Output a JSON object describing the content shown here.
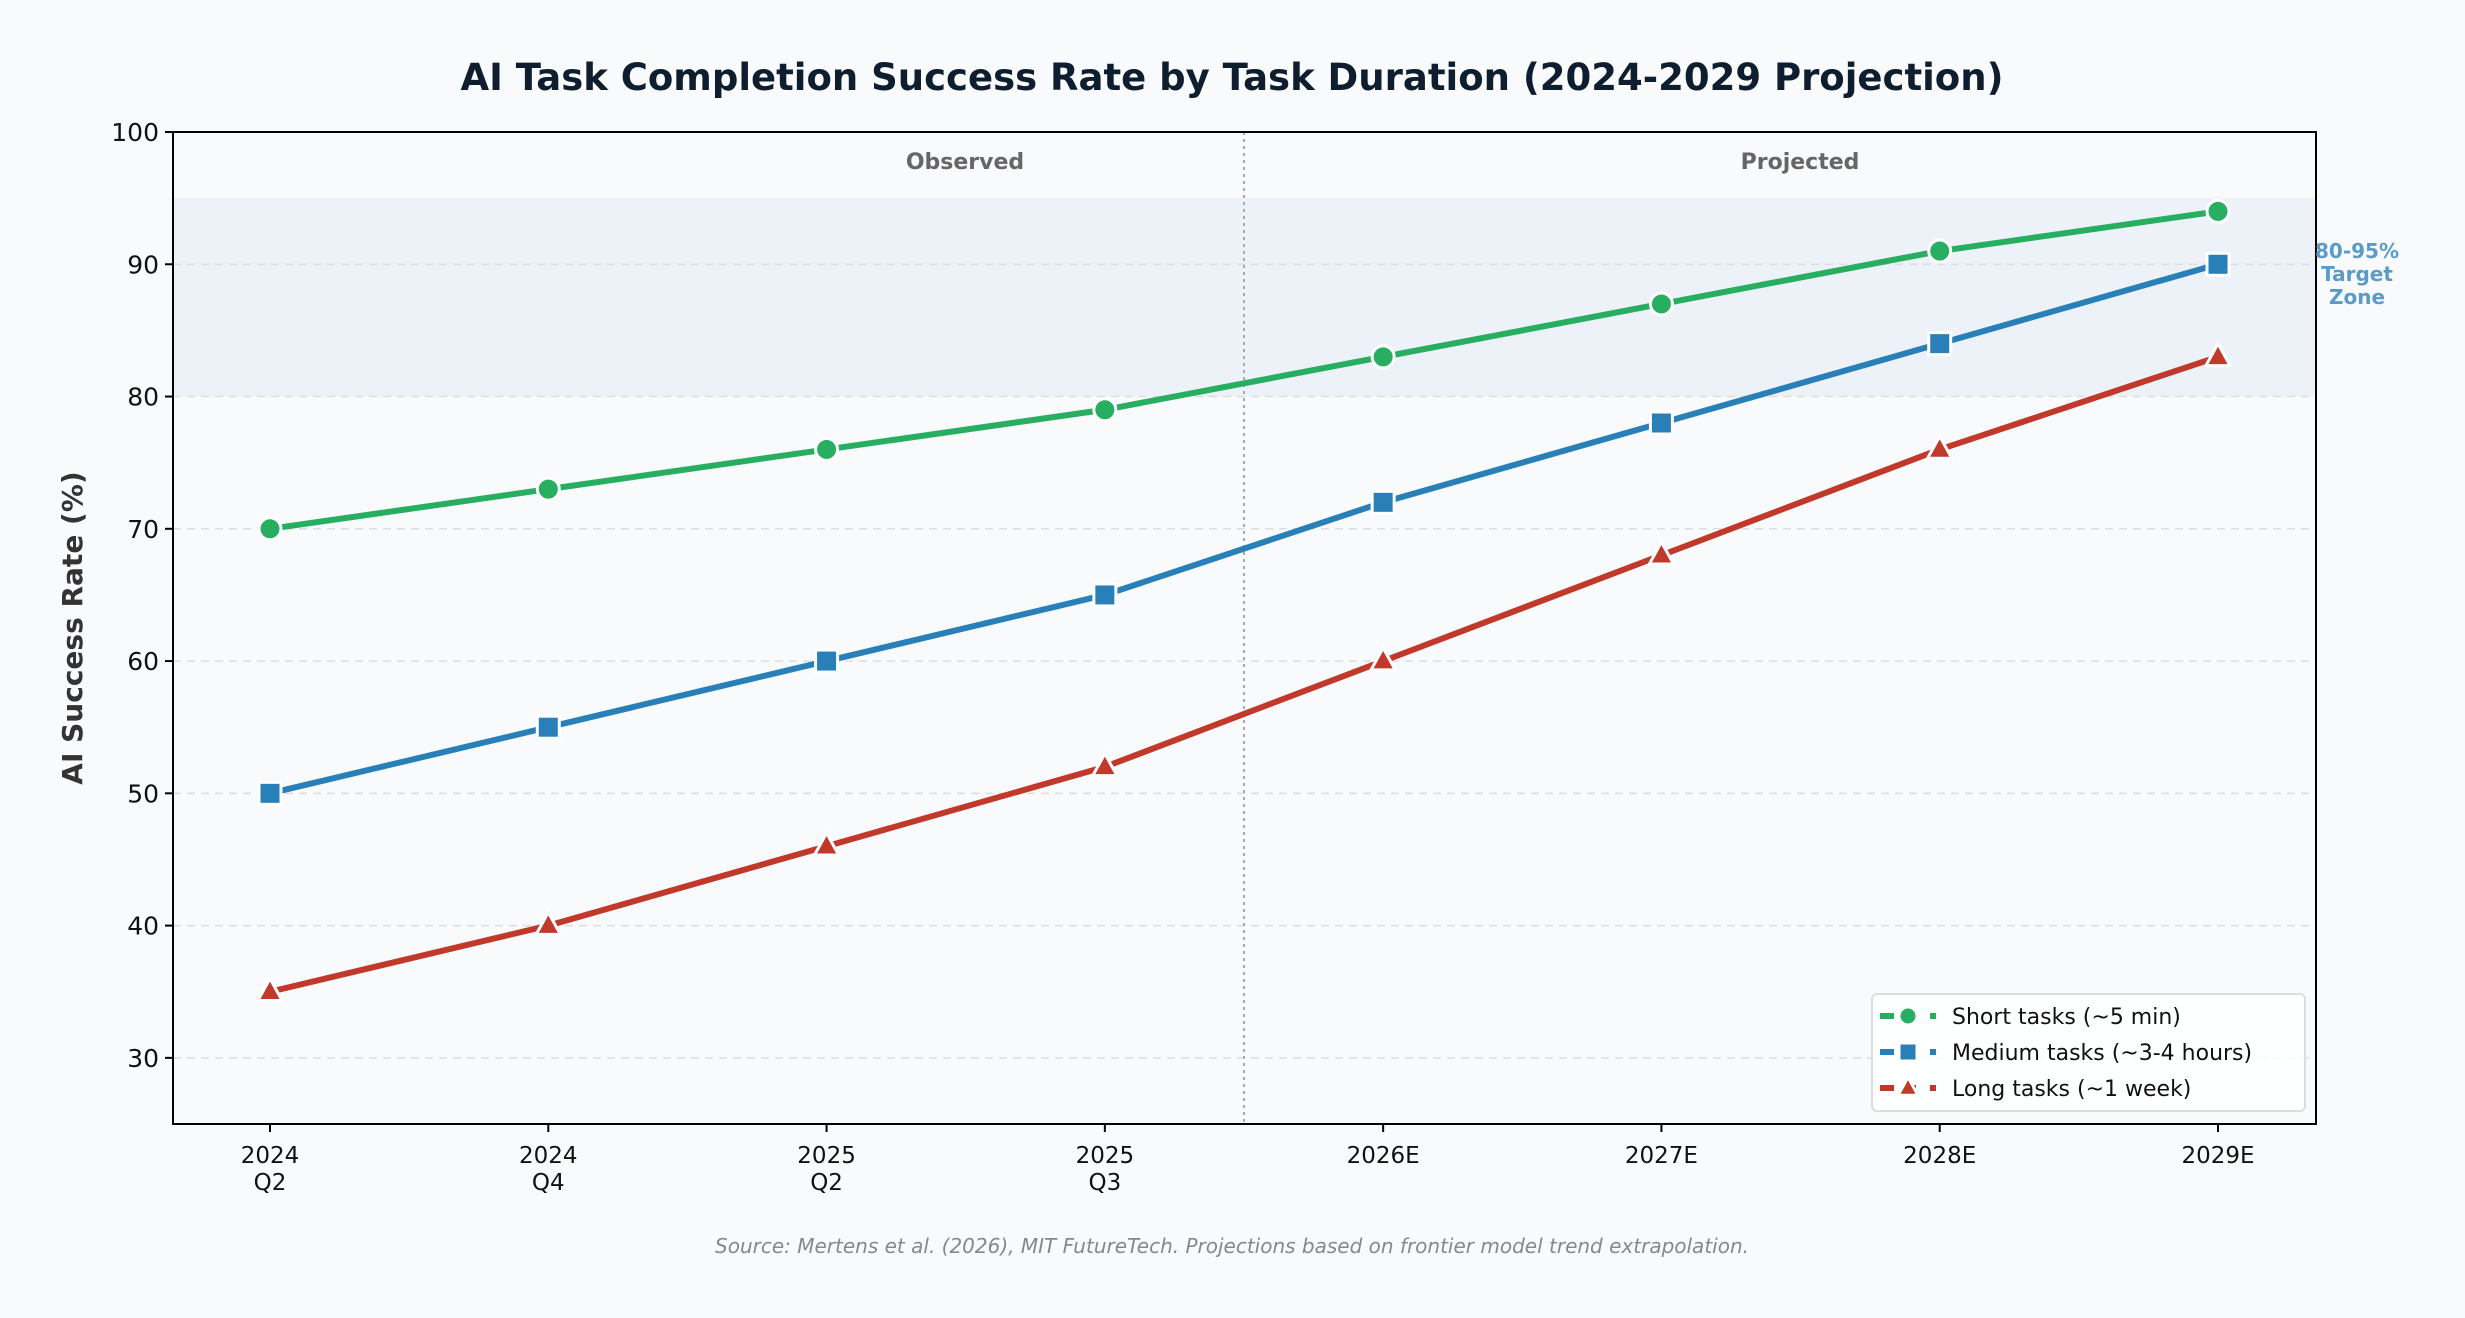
{
  "chart_data": {
    "type": "line",
    "title": "AI Task Completion Success Rate by Task Duration (2024-2029 Projection)",
    "xlabel": "",
    "ylabel": "AI Success Rate (%)",
    "categories": [
      [
        "2024",
        "Q2"
      ],
      [
        "2024",
        "Q4"
      ],
      [
        "2025",
        "Q2"
      ],
      [
        "2025",
        "Q3"
      ],
      [
        "2026E"
      ],
      [
        "2027E"
      ],
      [
        "2028E"
      ],
      [
        "2029E"
      ]
    ],
    "ylim": [
      25,
      100
    ],
    "yticks": [
      30,
      40,
      50,
      60,
      70,
      80,
      90,
      100
    ],
    "grid": true,
    "legend_position": "bottom-right",
    "series": [
      {
        "name": "Short tasks (~5 min)",
        "color": "#27ae60",
        "marker": "circle",
        "values": [
          70,
          73,
          76,
          79,
          83,
          87,
          91,
          94
        ]
      },
      {
        "name": "Medium tasks (~3-4 hours)",
        "color": "#2980b9",
        "marker": "square",
        "values": [
          50,
          55,
          60,
          65,
          72,
          78,
          84,
          90
        ]
      },
      {
        "name": "Long tasks (~1 week)",
        "color": "#c0392b",
        "marker": "triangle",
        "values": [
          35,
          40,
          46,
          52,
          60,
          68,
          76,
          83
        ]
      }
    ],
    "target_band": {
      "range": [
        80,
        95
      ],
      "label": [
        "80-95%",
        "Target",
        "Zone"
      ],
      "color": "#5b9bc9"
    },
    "divider_after_index": 3,
    "region_labels": {
      "observed": "Observed",
      "projected": "Projected"
    },
    "source": "Source: Mertens et al. (2026), MIT FutureTech. Projections based on frontier model trend extrapolation."
  }
}
